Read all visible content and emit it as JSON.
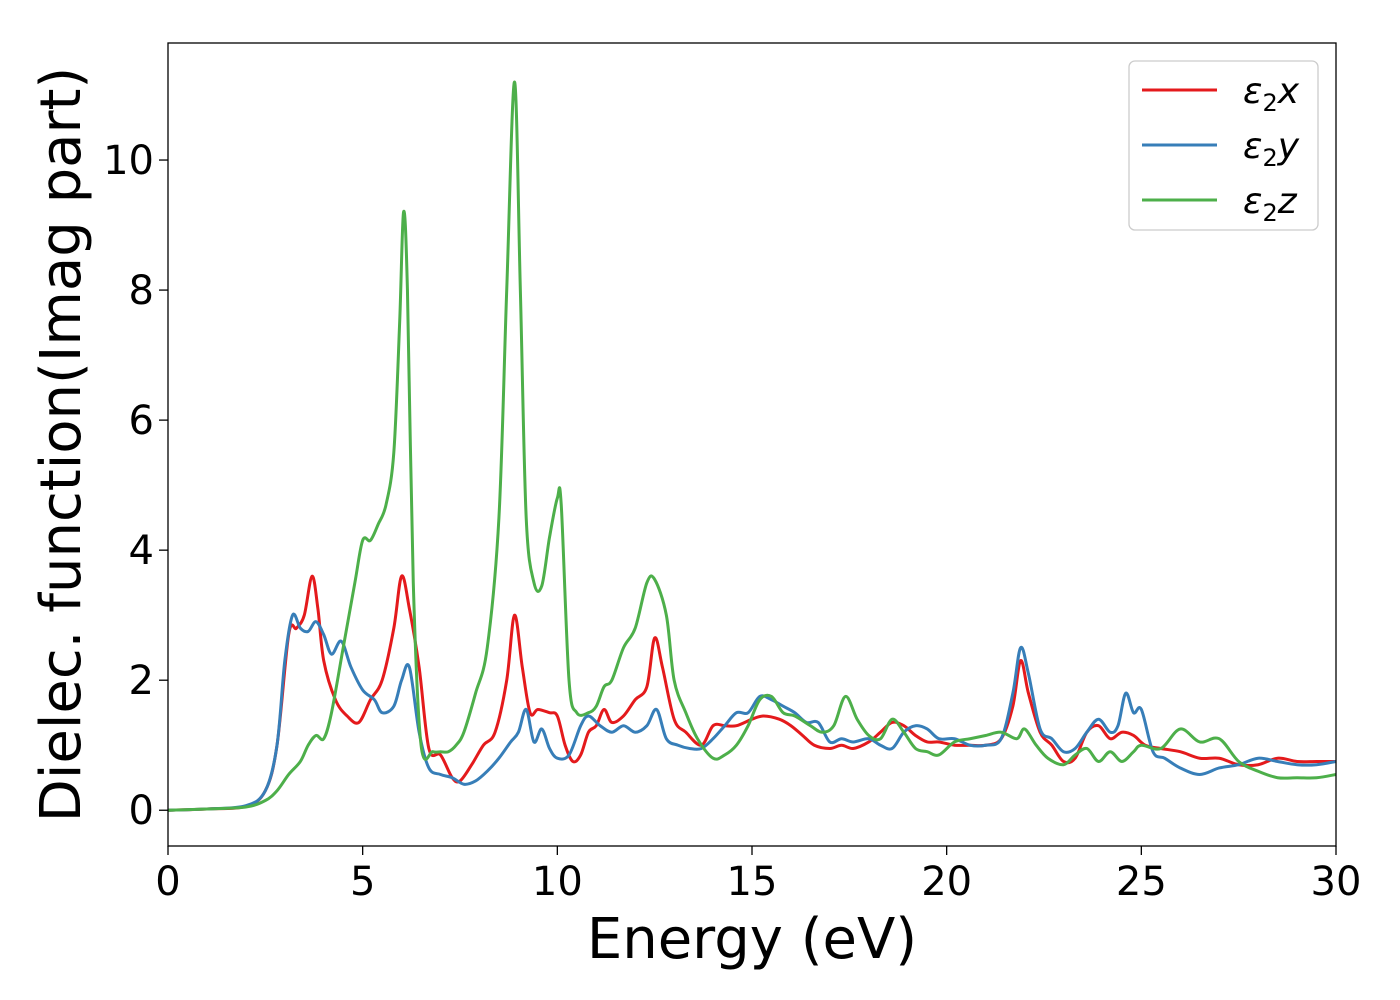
{
  "chart_data": {
    "type": "line",
    "title": "",
    "xlabel": "Energy (eV)",
    "ylabel": "Dielec. function(Imag part)",
    "xlim": [
      0,
      30
    ],
    "ylim": [
      -0.55,
      11.8
    ],
    "xticks": [
      0,
      5,
      10,
      15,
      20,
      25,
      30
    ],
    "yticks": [
      0,
      2,
      4,
      6,
      8,
      10
    ],
    "grid": false,
    "legend_position": "top-right",
    "series": [
      {
        "name": "ε₂x",
        "label_main": "ε",
        "label_sub": "2",
        "label_axis": "x",
        "color": "#e41a1c",
        "x": [
          0,
          1,
          2,
          2.5,
          2.8,
          3.1,
          3.3,
          3.5,
          3.7,
          3.85,
          4.0,
          4.3,
          4.6,
          4.9,
          5.2,
          5.5,
          5.8,
          6.0,
          6.2,
          6.45,
          6.7,
          7.0,
          7.3,
          7.5,
          7.8,
          8.1,
          8.4,
          8.7,
          8.9,
          9.1,
          9.3,
          9.5,
          9.8,
          10.0,
          10.2,
          10.4,
          10.6,
          10.8,
          11.0,
          11.2,
          11.4,
          11.7,
          12.0,
          12.3,
          12.5,
          12.7,
          13.0,
          13.3,
          13.7,
          14.0,
          14.3,
          14.6,
          15.0,
          15.3,
          15.7,
          16.0,
          16.3,
          16.6,
          17.0,
          17.3,
          17.6,
          18.0,
          18.3,
          18.6,
          18.9,
          19.2,
          19.5,
          19.8,
          20.2,
          20.6,
          21.0,
          21.4,
          21.7,
          21.9,
          22.1,
          22.4,
          22.7,
          23.0,
          23.3,
          23.6,
          23.9,
          24.2,
          24.5,
          24.8,
          25.1,
          25.5,
          26.0,
          26.5,
          27.0,
          27.5,
          28.0,
          28.5,
          29.0,
          29.5,
          30.0
        ],
        "y": [
          0,
          0.02,
          0.06,
          0.3,
          1.0,
          2.7,
          2.8,
          3.0,
          3.6,
          3.1,
          2.3,
          1.7,
          1.45,
          1.35,
          1.7,
          2.0,
          2.8,
          3.6,
          3.1,
          2.2,
          0.95,
          0.85,
          0.5,
          0.45,
          0.7,
          1.0,
          1.2,
          2.0,
          3.0,
          2.2,
          1.5,
          1.55,
          1.5,
          1.45,
          1.0,
          0.75,
          0.85,
          1.2,
          1.3,
          1.55,
          1.35,
          1.45,
          1.7,
          1.9,
          2.65,
          2.2,
          1.4,
          1.2,
          1.0,
          1.3,
          1.3,
          1.3,
          1.4,
          1.45,
          1.4,
          1.3,
          1.15,
          1.0,
          0.95,
          1.0,
          0.95,
          1.05,
          1.2,
          1.35,
          1.3,
          1.15,
          1.05,
          1.05,
          1.0,
          1.0,
          1.0,
          1.1,
          1.6,
          2.3,
          1.8,
          1.2,
          1.0,
          0.75,
          0.8,
          1.2,
          1.3,
          1.1,
          1.2,
          1.15,
          1.0,
          0.95,
          0.9,
          0.8,
          0.8,
          0.7,
          0.7,
          0.8,
          0.75,
          0.75,
          0.75
        ]
      },
      {
        "name": "ε₂y",
        "label_main": "ε",
        "label_sub": "2",
        "label_axis": "y",
        "color": "#377eb8",
        "x": [
          0,
          1,
          2,
          2.5,
          2.8,
          3.0,
          3.2,
          3.4,
          3.6,
          3.8,
          4.0,
          4.2,
          4.45,
          4.7,
          5.0,
          5.3,
          5.5,
          5.8,
          6.0,
          6.2,
          6.45,
          6.7,
          7.0,
          7.3,
          7.6,
          7.9,
          8.2,
          8.5,
          8.8,
          9.0,
          9.2,
          9.4,
          9.6,
          9.8,
          10.0,
          10.3,
          10.6,
          10.8,
          11.1,
          11.4,
          11.7,
          12.0,
          12.3,
          12.55,
          12.8,
          13.1,
          13.4,
          13.7,
          14.0,
          14.3,
          14.6,
          14.9,
          15.2,
          15.5,
          15.8,
          16.1,
          16.4,
          16.7,
          17.0,
          17.3,
          17.6,
          18.0,
          18.3,
          18.6,
          18.9,
          19.2,
          19.5,
          19.8,
          20.2,
          20.6,
          21.0,
          21.4,
          21.7,
          21.9,
          22.1,
          22.4,
          22.7,
          23.0,
          23.3,
          23.6,
          23.9,
          24.2,
          24.4,
          24.6,
          24.8,
          25.0,
          25.3,
          25.6,
          26.0,
          26.5,
          27.0,
          27.5,
          28.0,
          28.5,
          29.0,
          29.5,
          30.0
        ],
        "y": [
          0,
          0.02,
          0.07,
          0.3,
          1.0,
          2.3,
          3.0,
          2.8,
          2.75,
          2.9,
          2.7,
          2.4,
          2.6,
          2.2,
          1.85,
          1.7,
          1.5,
          1.6,
          2.0,
          2.2,
          1.2,
          0.65,
          0.55,
          0.5,
          0.4,
          0.45,
          0.6,
          0.8,
          1.05,
          1.2,
          1.55,
          1.05,
          1.25,
          0.95,
          0.8,
          0.85,
          1.3,
          1.45,
          1.3,
          1.2,
          1.3,
          1.2,
          1.3,
          1.55,
          1.1,
          1.0,
          0.95,
          0.95,
          1.1,
          1.3,
          1.5,
          1.5,
          1.75,
          1.7,
          1.6,
          1.5,
          1.35,
          1.35,
          1.05,
          1.1,
          1.05,
          1.1,
          1.0,
          0.95,
          1.2,
          1.3,
          1.25,
          1.1,
          1.1,
          1.0,
          1.0,
          1.1,
          1.8,
          2.5,
          2.1,
          1.25,
          1.1,
          0.9,
          0.95,
          1.2,
          1.4,
          1.2,
          1.3,
          1.8,
          1.5,
          1.55,
          0.9,
          0.8,
          0.65,
          0.55,
          0.65,
          0.7,
          0.8,
          0.75,
          0.7,
          0.7,
          0.75
        ]
      },
      {
        "name": "ε₂z",
        "label_main": "ε",
        "label_sub": "2",
        "label_axis": "z",
        "color": "#4daf4a",
        "x": [
          0,
          1,
          2,
          2.5,
          2.8,
          3.1,
          3.4,
          3.6,
          3.8,
          4.0,
          4.2,
          4.5,
          4.8,
          5.0,
          5.2,
          5.4,
          5.6,
          5.8,
          5.95,
          6.05,
          6.15,
          6.3,
          6.5,
          6.8,
          7.0,
          7.2,
          7.4,
          7.6,
          7.9,
          8.2,
          8.5,
          8.7,
          8.9,
          9.05,
          9.2,
          9.4,
          9.6,
          9.8,
          10.0,
          10.1,
          10.3,
          10.5,
          10.8,
          11.0,
          11.2,
          11.4,
          11.7,
          12.0,
          12.3,
          12.5,
          12.8,
          13.0,
          13.3,
          13.6,
          14.0,
          14.3,
          14.6,
          14.9,
          15.2,
          15.5,
          15.8,
          16.1,
          16.5,
          16.8,
          17.1,
          17.4,
          17.7,
          18.0,
          18.3,
          18.6,
          18.9,
          19.2,
          19.5,
          19.8,
          20.2,
          20.6,
          21.0,
          21.4,
          21.8,
          22.0,
          22.3,
          22.6,
          23.0,
          23.3,
          23.6,
          23.9,
          24.2,
          24.5,
          24.8,
          25.0,
          25.5,
          26.0,
          26.5,
          27.0,
          27.5,
          28.0,
          28.5,
          29.0,
          29.5,
          30.0
        ],
        "y": [
          0,
          0.02,
          0.05,
          0.15,
          0.3,
          0.55,
          0.75,
          1.0,
          1.15,
          1.1,
          1.5,
          2.5,
          3.5,
          4.15,
          4.15,
          4.4,
          4.7,
          5.5,
          7.5,
          9.2,
          8.0,
          3.5,
          1.0,
          0.9,
          0.9,
          0.9,
          1.0,
          1.2,
          1.8,
          2.5,
          4.5,
          8.0,
          11.2,
          8.0,
          4.5,
          3.5,
          3.45,
          4.2,
          4.8,
          4.7,
          2.0,
          1.5,
          1.5,
          1.6,
          1.9,
          2.0,
          2.5,
          2.8,
          3.5,
          3.55,
          3.0,
          2.0,
          1.5,
          1.1,
          0.8,
          0.85,
          1.0,
          1.3,
          1.7,
          1.75,
          1.5,
          1.45,
          1.3,
          1.2,
          1.3,
          1.75,
          1.4,
          1.15,
          1.1,
          1.4,
          1.2,
          0.95,
          0.9,
          0.85,
          1.05,
          1.1,
          1.15,
          1.2,
          1.1,
          1.25,
          1.0,
          0.8,
          0.7,
          0.85,
          0.95,
          0.75,
          0.9,
          0.75,
          0.9,
          1.0,
          0.95,
          1.25,
          1.05,
          1.1,
          0.75,
          0.6,
          0.5,
          0.5,
          0.5,
          0.55
        ]
      }
    ]
  }
}
